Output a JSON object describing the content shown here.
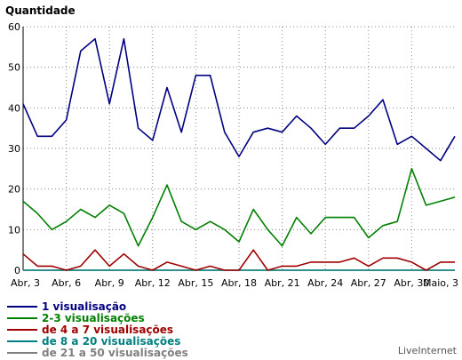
{
  "chart_data": {
    "type": "line",
    "ylabel": "Quantidade",
    "ylim": [
      0,
      60
    ],
    "yticks": [
      0,
      10,
      20,
      30,
      40,
      50,
      60
    ],
    "grid": true,
    "legend_position": "bottom-left",
    "x": [
      "Abr, 3",
      "Abr, 4",
      "Abr, 5",
      "Abr, 6",
      "Abr, 7",
      "Abr, 8",
      "Abr, 9",
      "Abr, 10",
      "Abr, 11",
      "Abr, 12",
      "Abr, 13",
      "Abr, 14",
      "Abr, 15",
      "Abr, 16",
      "Abr, 17",
      "Abr, 18",
      "Abr, 19",
      "Abr, 20",
      "Abr, 21",
      "Abr, 22",
      "Abr, 23",
      "Abr, 24",
      "Abr, 25",
      "Abr, 26",
      "Abr, 27",
      "Abr, 28",
      "Abr, 29",
      "Abr, 30",
      "Maio, 1",
      "Maio, 2",
      "Maio, 3"
    ],
    "xtick_labels": [
      "Abr, 3",
      "Abr, 6",
      "Abr, 9",
      "Abr, 12",
      "Abr, 15",
      "Abr, 18",
      "Abr, 21",
      "Abr, 24",
      "Abr, 27",
      "Abr, 30",
      "Maio, 3"
    ],
    "series": [
      {
        "name": "1 visualisação",
        "color": "#000080",
        "values": [
          41,
          33,
          33,
          37,
          54,
          57,
          41,
          57,
          35,
          32,
          45,
          34,
          48,
          48,
          34,
          28,
          34,
          35,
          34,
          38,
          35,
          31,
          35,
          35,
          38,
          42,
          31,
          33,
          30,
          27,
          33
        ]
      },
      {
        "name": "2-3 visualisações",
        "color": "#008000",
        "values": [
          17,
          14,
          10,
          12,
          15,
          13,
          16,
          14,
          6,
          13,
          21,
          12,
          10,
          12,
          10,
          7,
          15,
          10,
          6,
          13,
          9,
          13,
          13,
          13,
          8,
          11,
          12,
          25,
          16,
          17,
          18
        ]
      },
      {
        "name": "de 4 a 7 visualisações",
        "color": "#a00000",
        "values": [
          4,
          1,
          1,
          0,
          1,
          5,
          1,
          4,
          1,
          0,
          2,
          1,
          0,
          1,
          0,
          0,
          5,
          0,
          1,
          1,
          2,
          2,
          2,
          3,
          1,
          3,
          3,
          2,
          0,
          2,
          2
        ]
      },
      {
        "name": "de 8 a 20 visualisações",
        "color": "#008080",
        "values": [
          0,
          0,
          0,
          0,
          0,
          0,
          0,
          0,
          0,
          0,
          0,
          0,
          0,
          0,
          0,
          0,
          0,
          0,
          0,
          0,
          0,
          0,
          0,
          0,
          0,
          0,
          0,
          0,
          0,
          0,
          0
        ]
      },
      {
        "name": "de 21 a 50 visualisações",
        "color": "#808080",
        "values": [
          0,
          0,
          0,
          0,
          0,
          0,
          0,
          0,
          0,
          0,
          0,
          0,
          0,
          0,
          0,
          0,
          0,
          0,
          0,
          0,
          0,
          0,
          0,
          0,
          0,
          0,
          0,
          0,
          0,
          0,
          0
        ]
      }
    ]
  },
  "watermark": "LiveInternet"
}
